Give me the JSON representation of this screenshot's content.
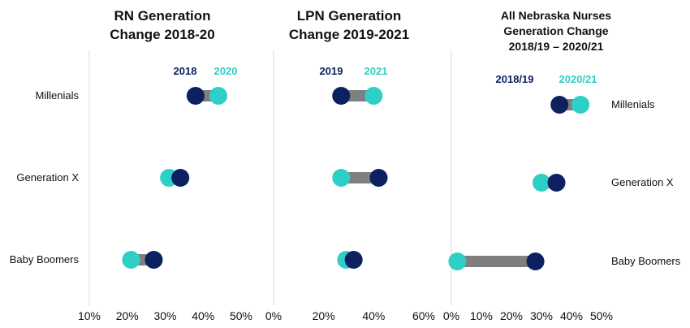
{
  "colors": {
    "start_dark": "#0d2160",
    "end_teal": "#2ecfc6",
    "connector": "#7f7f7f",
    "axis_line": "#d9d9d9"
  },
  "chart_data": [
    {
      "type": "dumbbell",
      "title_lines": [
        "RN Generation",
        "Change 2018-20"
      ],
      "legend": {
        "start_label": "2018",
        "end_label": "2020"
      },
      "x_ticks": [
        "10%",
        "20%",
        "30%",
        "40%",
        "50%"
      ],
      "xlim": [
        10,
        50
      ],
      "categories": [
        "Millenials",
        "Generation X",
        "Baby Boomers"
      ],
      "series": [
        {
          "name": "2018",
          "values": [
            38,
            34,
            27
          ]
        },
        {
          "name": "2020",
          "values": [
            44,
            31,
            21
          ]
        }
      ]
    },
    {
      "type": "dumbbell",
      "title_lines": [
        "LPN Generation",
        "Change 2019-2021"
      ],
      "legend": {
        "start_label": "2019",
        "end_label": "2021"
      },
      "x_ticks": [
        "0%",
        "20%",
        "40%",
        "60%"
      ],
      "xlim": [
        0,
        60
      ],
      "categories": [
        "Millenials",
        "Generation X",
        "Baby Boomers"
      ],
      "series": [
        {
          "name": "2019",
          "values": [
            27,
            42,
            32
          ]
        },
        {
          "name": "2021",
          "values": [
            40,
            27,
            29
          ]
        }
      ]
    },
    {
      "type": "dumbbell",
      "title_lines": [
        "All Nebraska Nurses",
        "Generation Change",
        "2018/19 – 2020/21"
      ],
      "legend": {
        "start_label": "2018/19",
        "end_label": "2020/21"
      },
      "x_ticks": [
        "0%",
        "10%",
        "20%",
        "30%",
        "40%",
        "50%"
      ],
      "xlim": [
        0,
        50
      ],
      "categories": [
        "Millenials",
        "Generation X",
        "Baby Boomers"
      ],
      "series": [
        {
          "name": "2018/19",
          "values": [
            36,
            35,
            28
          ]
        },
        {
          "name": "2020/21",
          "values": [
            43,
            30,
            2
          ]
        }
      ]
    }
  ]
}
